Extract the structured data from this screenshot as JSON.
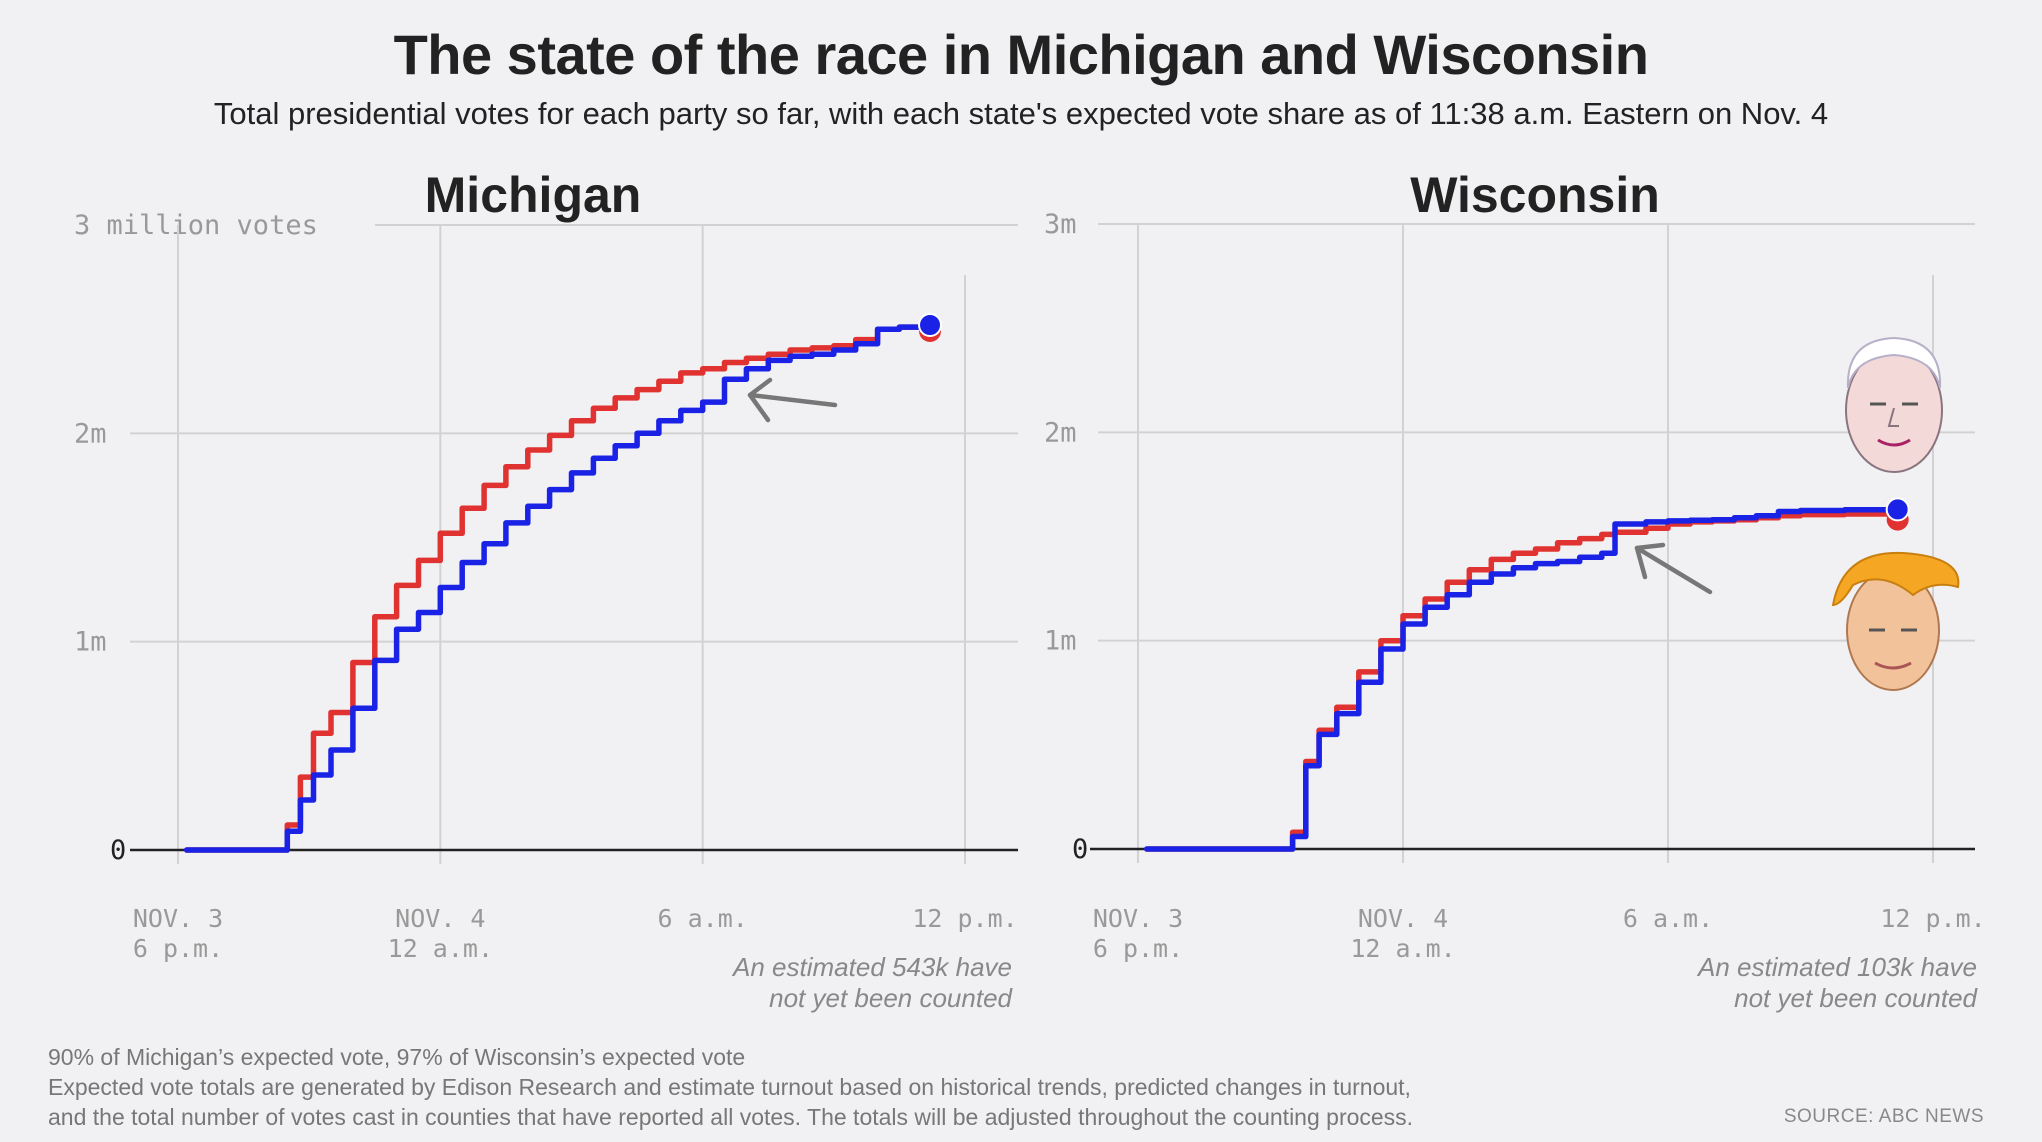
{
  "title": "The state of the race in Michigan and Wisconsin",
  "subtitle": "Total presidential votes for each party so far, with each state's expected vote share as of 11:38 a.m. Eastern on Nov. 4",
  "footer": {
    "line1": "90% of Michigan’s expected vote, 97% of Wisconsin’s expected vote",
    "line2": "Expected vote totals are generated by Edison Research and estimate turnout based on historical trends, predicted changes in turnout,",
    "line3": "and the total number of votes cast in counties that have reported all votes. The totals will be adjusted throughout the counting process.",
    "source": "SOURCE: ABC NEWS"
  },
  "colors": {
    "dem": "#1a22e6",
    "rep": "#e03230",
    "grid": "#d2d2d2",
    "axis": "#222222",
    "label": "#999999"
  },
  "chart_data": [
    {
      "type": "line",
      "title": "Michigan",
      "x_unit": "hours since Nov. 3, 6 p.m.",
      "xlim": [
        0,
        18
      ],
      "ylim": [
        0,
        3000000
      ],
      "x_ticks": [
        {
          "x": 0,
          "line1": "NOV. 3",
          "line2": "6 p.m."
        },
        {
          "x": 6,
          "line1": "NOV. 4",
          "line2": "12 a.m."
        },
        {
          "x": 12,
          "line1": "6 a.m.",
          "line2": ""
        },
        {
          "x": 18,
          "line1": "12 p.m.",
          "line2": ""
        }
      ],
      "y_ticks": [
        {
          "y": 0,
          "label": "0"
        },
        {
          "y": 1000000,
          "label": "1m"
        },
        {
          "y": 2000000,
          "label": "2m"
        },
        {
          "y": 3000000,
          "label": "3 million votes"
        }
      ],
      "annotation": {
        "line1": "An estimated 543k have",
        "line2": "not yet been counted"
      },
      "arrow": true,
      "series": [
        {
          "party": "rep",
          "x": [
            0.2,
            2.2,
            2.5,
            2.8,
            3.1,
            3.5,
            4,
            4.5,
            5,
            5.5,
            6,
            6.5,
            7,
            7.5,
            8,
            8.5,
            9,
            9.5,
            10,
            10.5,
            11,
            11.5,
            12,
            12.5,
            13,
            13.5,
            14,
            14.5,
            15,
            15.5,
            16,
            16.5,
            17.2
          ],
          "y": [
            0,
            0,
            120000,
            350000,
            560000,
            660000,
            900000,
            1120000,
            1270000,
            1390000,
            1520000,
            1640000,
            1750000,
            1840000,
            1920000,
            1990000,
            2060000,
            2120000,
            2170000,
            2210000,
            2250000,
            2290000,
            2310000,
            2340000,
            2360000,
            2380000,
            2400000,
            2410000,
            2420000,
            2450000,
            2500000,
            2510000,
            2520000
          ]
        },
        {
          "party": "dem",
          "x": [
            0.2,
            2.2,
            2.5,
            2.8,
            3.1,
            3.5,
            4,
            4.5,
            5,
            5.5,
            6,
            6.5,
            7,
            7.5,
            8,
            8.5,
            9,
            9.5,
            10,
            10.5,
            11,
            11.5,
            12,
            12.49,
            12.5,
            13,
            13.5,
            14,
            14.5,
            15,
            15.5,
            16,
            16.5,
            17.2
          ],
          "y": [
            0,
            0,
            90000,
            240000,
            360000,
            480000,
            680000,
            910000,
            1060000,
            1140000,
            1260000,
            1380000,
            1470000,
            1570000,
            1650000,
            1730000,
            1810000,
            1880000,
            1940000,
            2000000,
            2060000,
            2110000,
            2150000,
            2150000,
            2260000,
            2310000,
            2350000,
            2370000,
            2380000,
            2400000,
            2430000,
            2500000,
            2510000,
            2520000
          ]
        }
      ]
    },
    {
      "type": "line",
      "title": "Wisconsin",
      "x_unit": "hours since Nov. 3, 6 p.m.",
      "xlim": [
        0,
        18
      ],
      "ylim": [
        0,
        3000000
      ],
      "x_ticks": [
        {
          "x": 0,
          "line1": "NOV. 3",
          "line2": "6 p.m."
        },
        {
          "x": 6,
          "line1": "NOV. 4",
          "line2": "12 a.m."
        },
        {
          "x": 12,
          "line1": "6 a.m.",
          "line2": ""
        },
        {
          "x": 18,
          "line1": "12 p.m.",
          "line2": ""
        }
      ],
      "y_ticks": [
        {
          "y": 0,
          "label": "0"
        },
        {
          "y": 1000000,
          "label": "1m"
        },
        {
          "y": 2000000,
          "label": "2m"
        },
        {
          "y": 3000000,
          "label": "3m"
        }
      ],
      "annotation": {
        "line1": "An estimated 103k have",
        "line2": "not yet been counted"
      },
      "arrow": true,
      "faces": true,
      "series": [
        {
          "party": "rep",
          "x": [
            0.2,
            3.3,
            3.5,
            3.8,
            4.1,
            4.5,
            5,
            5.5,
            6,
            6.5,
            7,
            7.5,
            8,
            8.5,
            9,
            9.5,
            10,
            10.5,
            10.8,
            11.5,
            12,
            12.5,
            13,
            13.5,
            14,
            14.5,
            15,
            16,
            17.2
          ],
          "y": [
            0,
            0,
            80000,
            420000,
            570000,
            680000,
            850000,
            1000000,
            1120000,
            1200000,
            1280000,
            1340000,
            1390000,
            1420000,
            1440000,
            1470000,
            1490000,
            1510000,
            1520000,
            1540000,
            1560000,
            1570000,
            1575000,
            1580000,
            1590000,
            1600000,
            1605000,
            1608000,
            1610000
          ]
        },
        {
          "party": "dem",
          "x": [
            0.2,
            3.3,
            3.5,
            3.8,
            4.1,
            4.5,
            5,
            5.5,
            6,
            6.5,
            7,
            7.5,
            8,
            8.5,
            9,
            9.5,
            10,
            10.5,
            10.79,
            10.8,
            11.5,
            12,
            12.5,
            13,
            13.5,
            14,
            14.5,
            15,
            16,
            17.2
          ],
          "y": [
            0,
            0,
            60000,
            400000,
            550000,
            650000,
            800000,
            960000,
            1080000,
            1160000,
            1220000,
            1280000,
            1320000,
            1350000,
            1370000,
            1380000,
            1400000,
            1420000,
            1420000,
            1560000,
            1570000,
            1575000,
            1578000,
            1580000,
            1590000,
            1600000,
            1620000,
            1625000,
            1628000,
            1630000
          ]
        }
      ]
    }
  ]
}
